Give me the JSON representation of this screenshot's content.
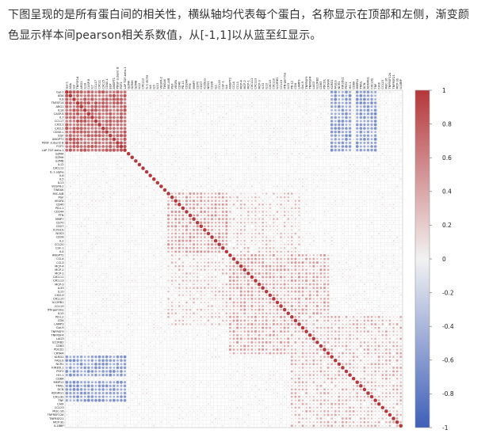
{
  "description": "下图呈现的是所有蛋白间的相关性，横纵轴均代表每个蛋白，名称显示在顶部和左侧，渐变颜色显示样本间pearson相关系数值，从[-1,1]以从蓝至红显示。",
  "colors": {
    "negative": "#3f5fb8",
    "neutral": "#f2f2f2",
    "positive": "#b5373a",
    "grid": "#d8d8d8"
  },
  "chart_data": {
    "type": "heatmap",
    "value_range": [
      -1,
      1
    ],
    "colorbar_ticks": [
      "1",
      "0.8",
      "0.6",
      "0.4",
      "0.2",
      "0",
      "-0.2",
      "-0.4",
      "-0.6",
      "-0.8",
      "-1"
    ],
    "colorbar_values": [
      1,
      0.8,
      0.6,
      0.4,
      0.2,
      0,
      -0.2,
      -0.4,
      -0.6,
      -0.8,
      -1
    ],
    "proteins": [
      "Gal-1",
      "ADA",
      "IL8",
      "TNFSF14",
      "ARG1",
      "IL18",
      "CASP-8",
      "IL7",
      "CCL17",
      "CXCL1",
      "CXCL5",
      "CD40-L",
      "EGF",
      "ANGPT1",
      "PDGF subunit B",
      "FGF2",
      "LAP TGF-beta-1",
      "GZMA",
      "GZMH",
      "GZMB",
      "IL12",
      "CXCL12",
      "IL-1 alpha",
      "IL6",
      "IL5",
      "IL13",
      "VEGFR-2",
      "TWEAK",
      "MIC-A/B",
      "PGF",
      "VEGFA",
      "CD40",
      "PD-L1",
      "CD244",
      "PTN",
      "MMP7",
      "CD70",
      "CD27",
      "ICOSLG",
      "NOS3",
      "CD28",
      "IL2",
      "CCL20",
      "CSF-1",
      "IL4",
      "ANGPT2",
      "CCL4",
      "CCL3",
      "MCP-4",
      "MCP-2",
      "MCP-1",
      "CXCL11",
      "CXCL13",
      "MCP-3",
      "IL33",
      "IL10",
      "CXCL9",
      "CXCL10",
      "IL12RB1",
      "CCL19",
      "IFN-gamma",
      "IL15",
      "PD-L2",
      "CD4",
      "LAMP3",
      "Gal-9",
      "TNFRSF9",
      "TNFRSF4",
      "LAG3",
      "IL12RB2",
      "CD83",
      "PDCD1",
      "CRTAM",
      "KLRD1",
      "FASLG",
      "NCR1",
      "KIR3DL1",
      "PGF2",
      "HO-1",
      "CD8A",
      "MMP12",
      "TRAIL",
      "DCN",
      "ADGRG1",
      "CXCL9b",
      "TNF",
      "CAIX",
      "CCL23",
      "MUC-16",
      "TNFRSF12A",
      "TNFRSF21",
      "MCP-3b",
      "IL18BP"
    ],
    "blocks": [
      {
        "rows": [
          0,
          16
        ],
        "cols": [
          0,
          16
        ],
        "value": 0.72
      },
      {
        "rows": [
          28,
          44
        ],
        "cols": [
          28,
          44
        ],
        "value": 0.38
      },
      {
        "rows": [
          45,
          72
        ],
        "cols": [
          45,
          72
        ],
        "value": 0.35
      },
      {
        "rows": [
          62,
          92
        ],
        "cols": [
          62,
          92
        ],
        "value": 0.28
      },
      {
        "rows": [
          0,
          16
        ],
        "cols": [
          73,
          78
        ],
        "value": -0.55
      },
      {
        "rows": [
          80,
          85
        ],
        "cols": [
          0,
          16
        ],
        "value": -0.55
      },
      {
        "rows": [
          45,
          64
        ],
        "cols": [
          28,
          44
        ],
        "value": 0.22
      }
    ]
  }
}
